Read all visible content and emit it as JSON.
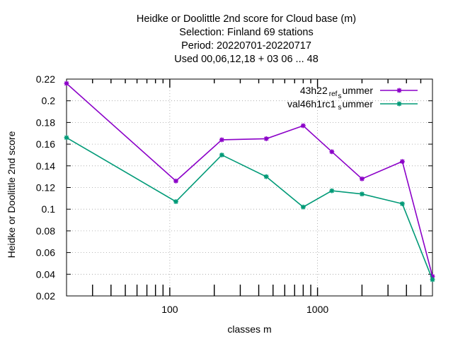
{
  "chart_data": {
    "type": "line",
    "title_lines": [
      "Heidke or Doolittle 2nd score  for Cloud base (m)",
      "Selection: Finland     69 stations",
      "Period: 20220701-20220717",
      "Used  00,06,12,18  + 03 06 ... 48"
    ],
    "xlabel": "classes m",
    "ylabel": "Heidke or Doolittle 2nd score",
    "x_scale": "log",
    "xlim": [
      20,
      6000
    ],
    "ylim": [
      0.02,
      0.22
    ],
    "x_tick_labels": [
      "100",
      "1000"
    ],
    "y_tick_labels": [
      "0.02",
      "0.04",
      "0.06",
      "0.08",
      "0.1",
      "0.12",
      "0.14",
      "0.16",
      "0.18",
      "0.2",
      "0.22"
    ],
    "grid": true,
    "legend_position": "top-right",
    "x": [
      20,
      110,
      225,
      450,
      800,
      1250,
      2000,
      3750,
      6000
    ],
    "series": [
      {
        "name_parts": [
          "43h22",
          "ref",
          "s",
          "ummer"
        ],
        "color": "#8b00c8",
        "values": [
          0.216,
          0.126,
          0.164,
          0.165,
          0.177,
          0.153,
          0.128,
          0.144,
          0.038
        ]
      },
      {
        "name_parts": [
          "val46h1rc1",
          "",
          "s",
          "ummer"
        ],
        "color": "#009a77",
        "values": [
          0.166,
          0.107,
          0.15,
          0.13,
          0.102,
          0.117,
          0.114,
          0.105,
          0.035
        ]
      }
    ]
  }
}
